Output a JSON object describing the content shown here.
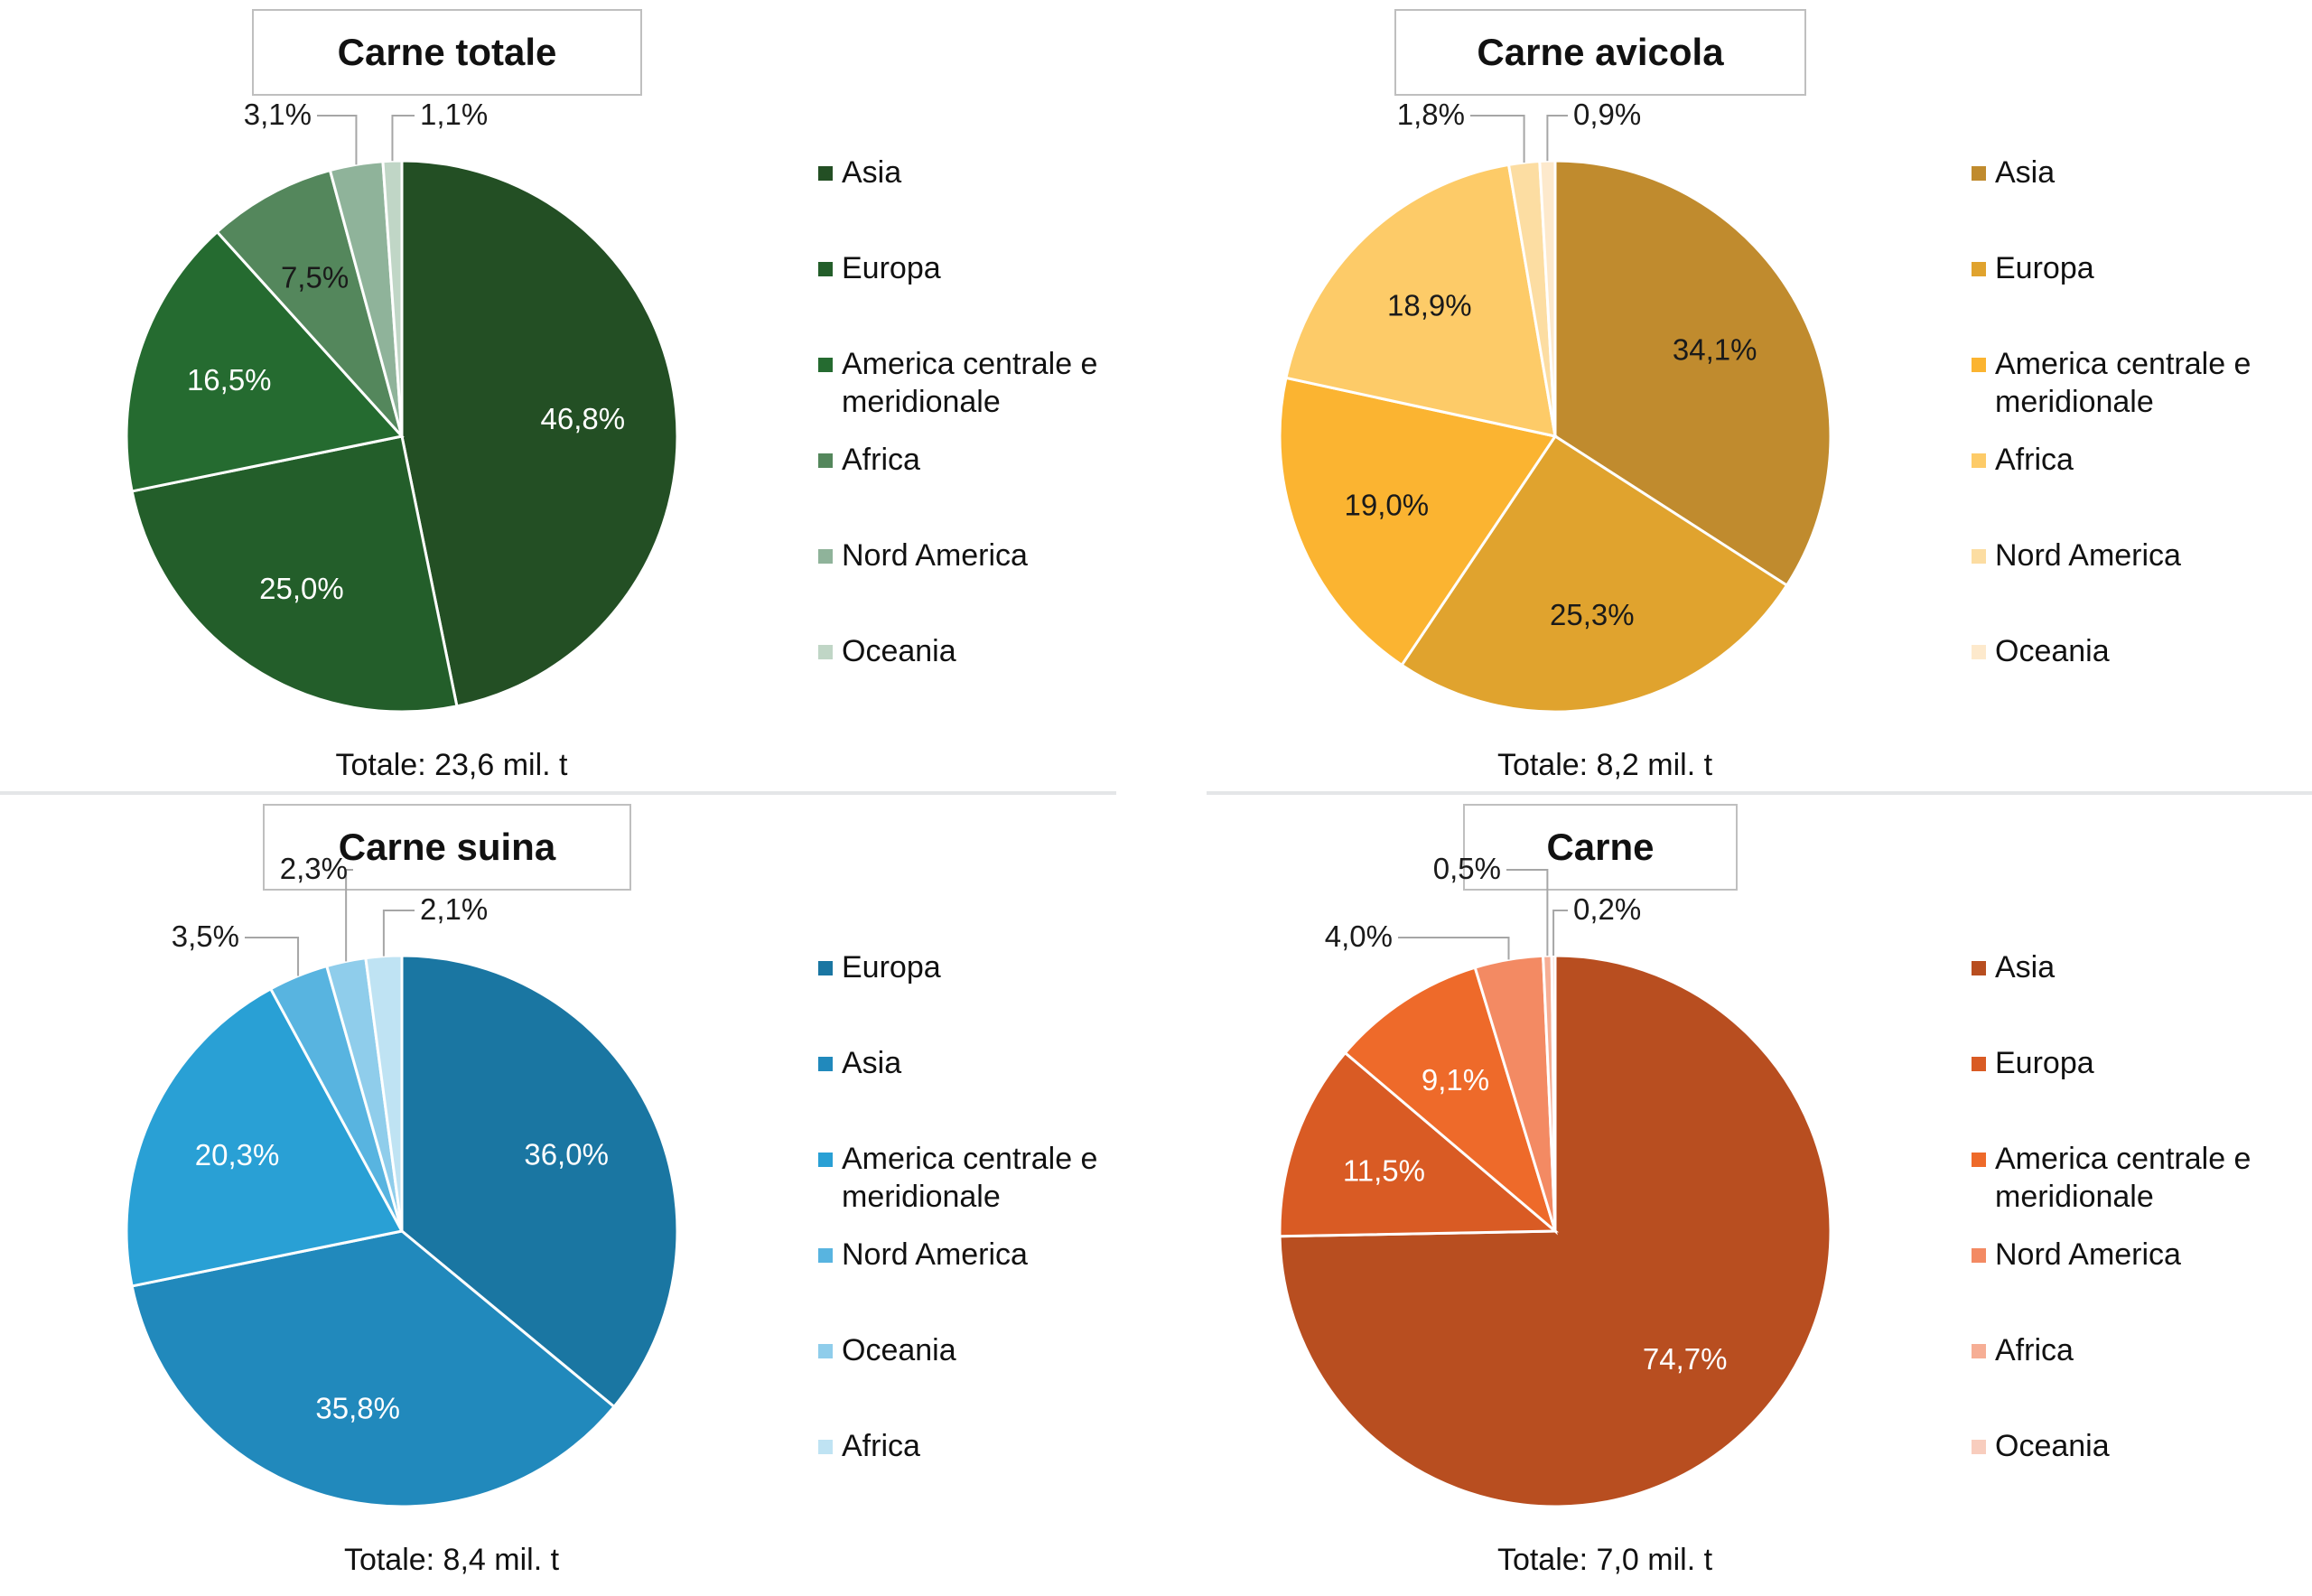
{
  "chart_data": [
    {
      "type": "pie",
      "title": "Carne totale",
      "total": "Totale: 23,6 mil. t",
      "categories": [
        "Asia",
        "Europa",
        "America centrale e meridionale",
        "Africa",
        "Nord America",
        "Oceania"
      ],
      "values": [
        46.8,
        25.0,
        16.5,
        7.5,
        3.1,
        1.1
      ],
      "labels": [
        "46,8%",
        "25,0%",
        "16,5%",
        "7,5%",
        "3,1%",
        "1,1%"
      ],
      "colors": [
        "#234f24",
        "#235e2a",
        "#256b30",
        "#54875c",
        "#8fb39a",
        "#c0d6c6"
      ],
      "label_colors": [
        "#ffffff",
        "#ffffff",
        "#ffffff",
        "#1a1a1a",
        "#1a1a1a",
        "#1a1a1a"
      ]
    },
    {
      "type": "pie",
      "title": "Carne avicola",
      "total": "Totale: 8,2 mil. t",
      "categories": [
        "Asia",
        "Europa",
        "America centrale e meridionale",
        "Africa",
        "Nord America",
        "Oceania"
      ],
      "values": [
        34.1,
        25.3,
        19.0,
        18.9,
        1.8,
        0.9
      ],
      "labels": [
        "34,1%",
        "25,3%",
        "19,0%",
        "18,9%",
        "1,8%",
        "0,9%"
      ],
      "colors": [
        "#c08b2e",
        "#e0a32e",
        "#fbb431",
        "#fdcb68",
        "#fcdda2",
        "#fde9cc"
      ],
      "label_colors": [
        "#1a1a1a",
        "#1a1a1a",
        "#1a1a1a",
        "#1a1a1a",
        "#1a1a1a",
        "#1a1a1a"
      ]
    },
    {
      "type": "pie",
      "title": "Carne suina",
      "total": "Totale: 8,4 mil. t",
      "categories": [
        "Europa",
        "Asia",
        "America centrale e meridionale",
        "Nord America",
        "Oceania",
        "Africa"
      ],
      "values": [
        36.0,
        35.8,
        20.3,
        3.5,
        2.3,
        2.1
      ],
      "labels": [
        "36,0%",
        "35,8%",
        "20,3%",
        "3,5%",
        "2,3%",
        "2,1%"
      ],
      "colors": [
        "#1a76a2",
        "#2189bc",
        "#29a0d5",
        "#58b4e0",
        "#8fcdeb",
        "#bfe3f3"
      ],
      "label_colors": [
        "#ffffff",
        "#ffffff",
        "#ffffff",
        "#1a1a1a",
        "#1a1a1a",
        "#1a1a1a"
      ]
    },
    {
      "type": "pie",
      "title": "Carne",
      "total": "Totale: 7,0 mil. t",
      "categories": [
        "Asia",
        "Europa",
        "America centrale e meridionale",
        "Nord America",
        "Africa",
        "Oceania"
      ],
      "values": [
        74.7,
        11.5,
        9.1,
        4.0,
        0.5,
        0.2
      ],
      "labels": [
        "74,7%",
        "11,5%",
        "9,1%",
        "4,0%",
        "0,5%",
        "0,2%"
      ],
      "colors": [
        "#b84e20",
        "#d95b24",
        "#ee6a2a",
        "#f38a63",
        "#f6ae95",
        "#f8cdbe"
      ],
      "label_colors": [
        "#ffffff",
        "#ffffff",
        "#ffffff",
        "#1a1a1a",
        "#1a1a1a",
        "#1a1a1a"
      ]
    }
  ]
}
